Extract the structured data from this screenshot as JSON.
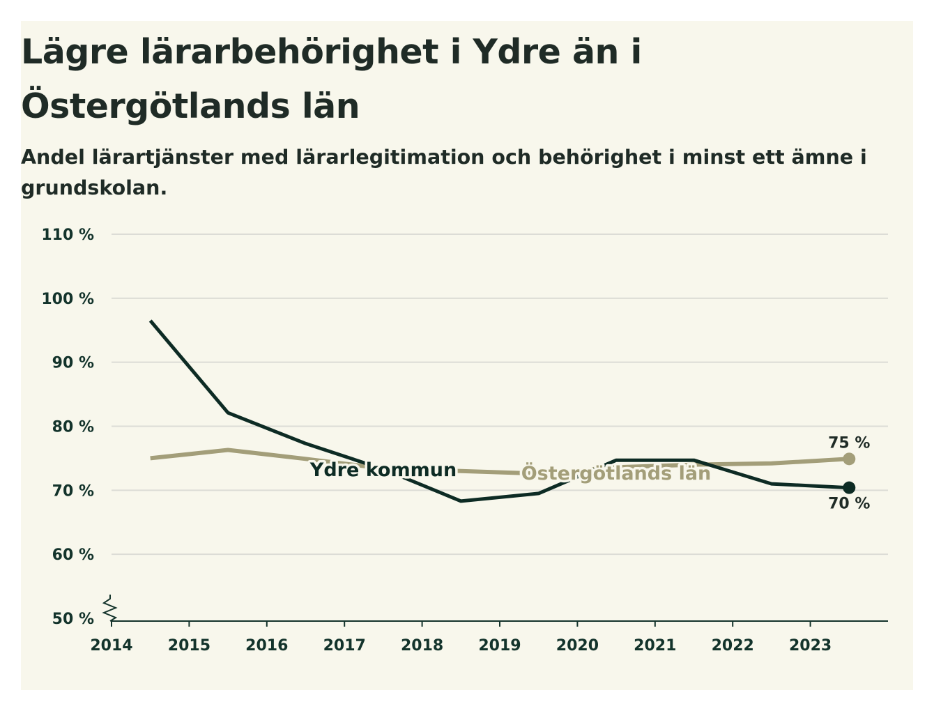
{
  "header": {
    "title": "Lägre lärarbehörighet i Ydre än i Östergötlands län",
    "subtitle": "Andel lärartjänster med lärarlegitimation och behörighet i minst ett ämne i grundskolan."
  },
  "colors": {
    "background": "#f8f7ec",
    "ydre": "#0d2b24",
    "ostergotland": "#a39e79",
    "grid": "#dcdcd6",
    "axis": "#13332b"
  },
  "chart_data": {
    "type": "line",
    "title": "Lägre lärarbehörighet i Ydre än i Östergötlands län",
    "subtitle": "Andel lärartjänster med lärarlegitimation och behörighet i minst ett ämne i grundskolan.",
    "xlabel": "",
    "ylabel": "",
    "x_ticks": [
      "2014",
      "2015",
      "2016",
      "2017",
      "2018",
      "2019",
      "2020",
      "2021",
      "2022",
      "2023"
    ],
    "y_ticks": [
      "50 %",
      "60 %",
      "70 %",
      "80 %",
      "90 %",
      "100 %",
      "110 %"
    ],
    "y_tick_values": [
      50,
      60,
      70,
      80,
      90,
      100,
      110
    ],
    "ylim": [
      50,
      110
    ],
    "xlim": [
      2014,
      2024
    ],
    "y_axis_break": true,
    "grid": true,
    "x": [
      2014.5,
      2015.5,
      2016.5,
      2017.5,
      2018.5,
      2019.5,
      2020.5,
      2021.5,
      2022.5,
      2023.5
    ],
    "series": [
      {
        "name": "Ydre kommun",
        "color": "#0d2b24",
        "values": [
          96.5,
          82.1,
          77.3,
          73.3,
          68.3,
          69.5,
          74.7,
          74.7,
          71.0,
          70.4
        ],
        "end_label": "70 %",
        "inline_label": "Ydre kommun"
      },
      {
        "name": "Östergötlands län",
        "color": "#a39e79",
        "values": [
          75.0,
          76.3,
          74.9,
          73.4,
          73.0,
          72.6,
          73.6,
          74.0,
          74.2,
          74.9
        ],
        "end_label": "75 %",
        "inline_label": "Östergötlands län"
      }
    ]
  }
}
